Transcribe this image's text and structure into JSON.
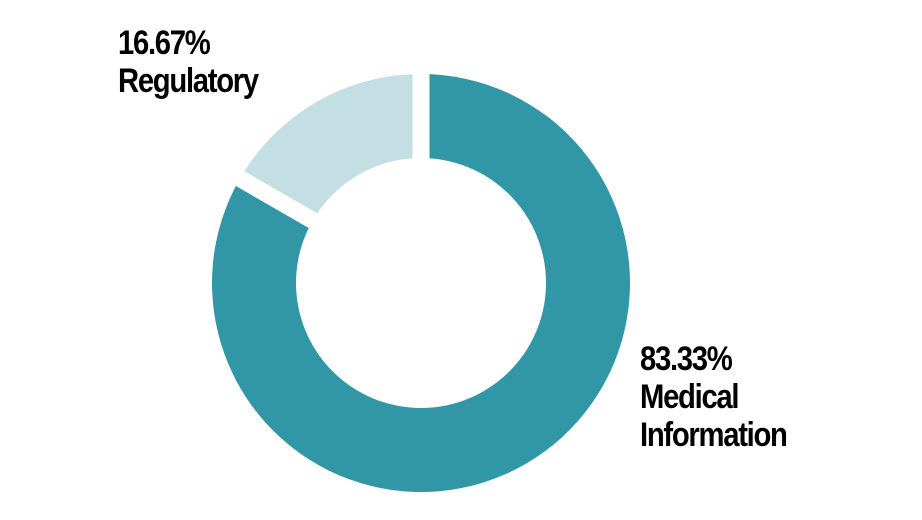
{
  "chart_data": {
    "type": "donut",
    "title": "",
    "slices": [
      {
        "name_lines": [
          "Medical",
          "Information"
        ],
        "value": 83.33,
        "value_label": "83.33%",
        "color": "#3197a6"
      },
      {
        "name_lines": [
          "Regulatory"
        ],
        "value": 16.67,
        "value_label": "16.67%",
        "color": "#c3dfe3"
      }
    ],
    "start_angle": "12 o'clock",
    "direction": "clockwise",
    "gap_color": "#ffffff",
    "legend": "none"
  }
}
